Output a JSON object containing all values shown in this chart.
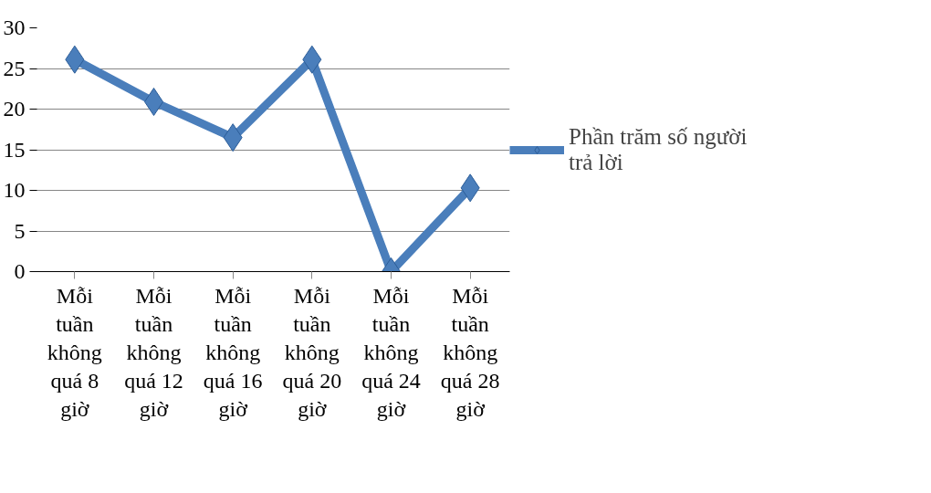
{
  "chart_data": {
    "type": "line",
    "categories": [
      "Mỗi tuần không quá 8 giờ",
      "Mỗi tuần không quá 12 giờ",
      "Mỗi tuần không quá 16 giờ",
      "Mỗi tuần không quá 20 giờ",
      "Mỗi tuần không quá 24 giờ",
      "Mỗi tuần không quá 28 giờ"
    ],
    "series": [
      {
        "name": "Phần trăm số người trả lời",
        "color": "#4a7ebb",
        "values": [
          26.1,
          20.9,
          16.5,
          26.1,
          0,
          10.3
        ]
      }
    ],
    "ylim": [
      0,
      30
    ],
    "yticks": [
      0,
      5,
      10,
      15,
      20,
      25,
      30
    ],
    "grid": "y",
    "legend": "right",
    "marker": "diamond",
    "line_style": "solid"
  }
}
